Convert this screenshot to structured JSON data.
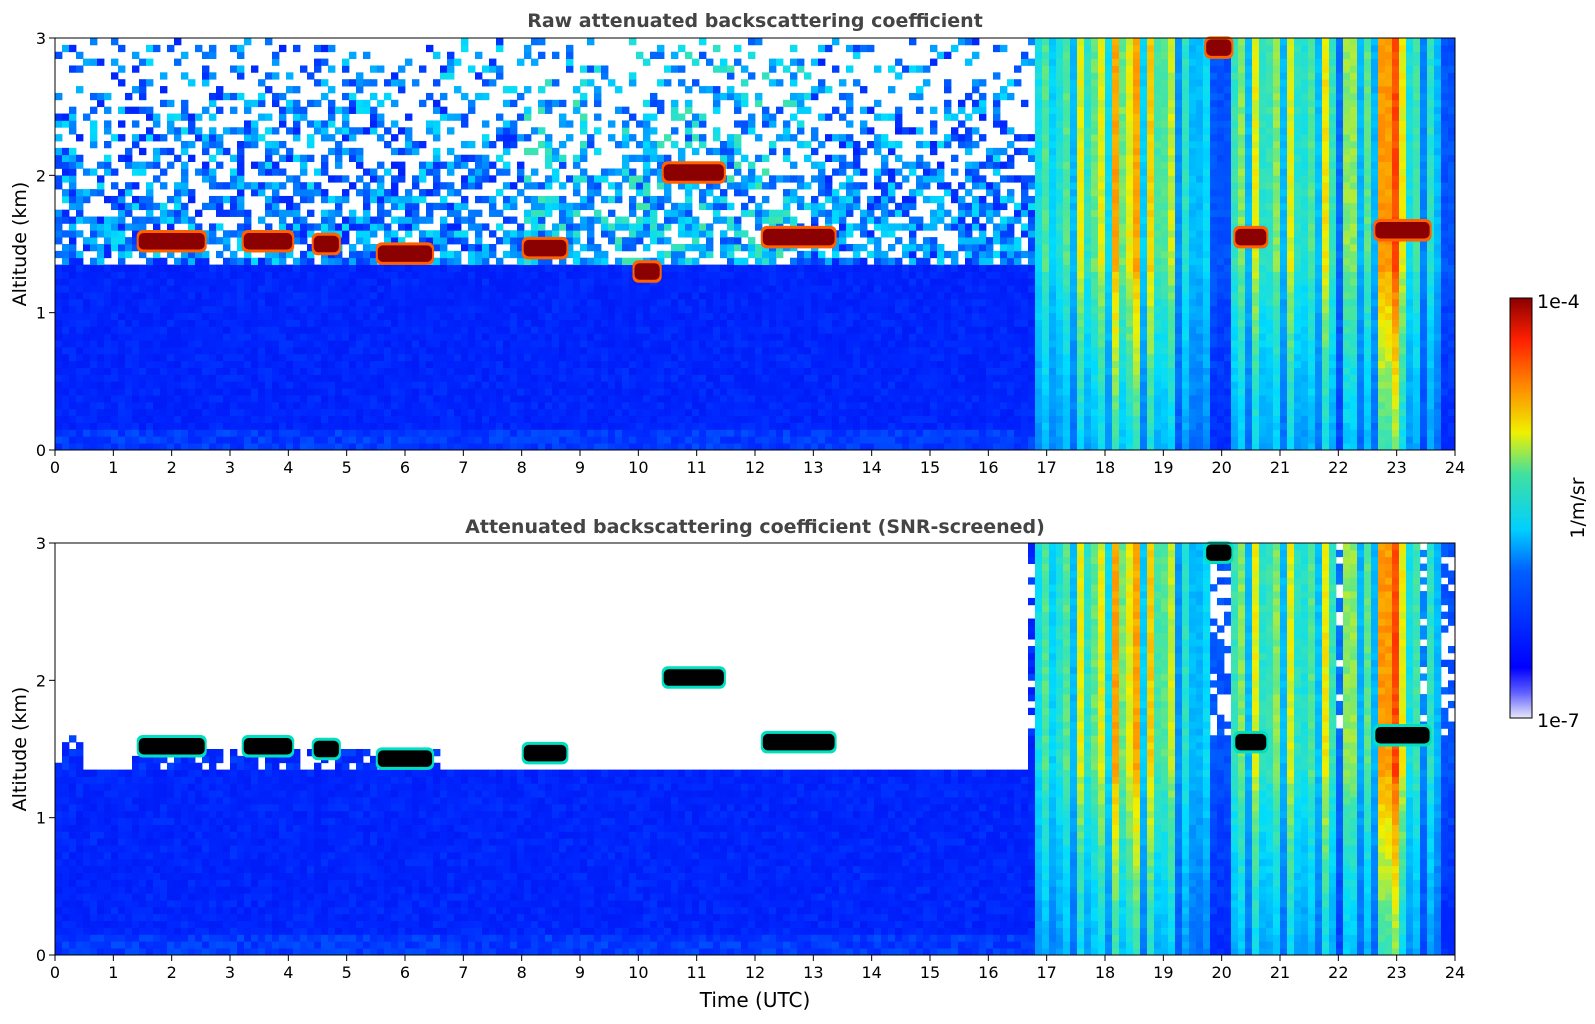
{
  "chart_data": [
    {
      "type": "heatmap",
      "title": "Raw attenuated backscattering coefficient",
      "ylabel": "Altitude (km)",
      "xlabel": "",
      "xlim": [
        0,
        24
      ],
      "ylim": [
        0,
        3
      ],
      "x_ticks": [
        "0",
        "1",
        "2",
        "3",
        "4",
        "5",
        "6",
        "7",
        "8",
        "9",
        "10",
        "11",
        "12",
        "13",
        "14",
        "15",
        "16",
        "17",
        "18",
        "19",
        "20",
        "21",
        "22",
        "23",
        "24"
      ],
      "y_ticks": [
        "0",
        "1",
        "2",
        "3"
      ],
      "screened": false,
      "cloud_layers": [
        {
          "t0": 1.4,
          "t1": 2.6,
          "alt": 1.52
        },
        {
          "t0": 3.2,
          "t1": 4.1,
          "alt": 1.52
        },
        {
          "t0": 4.4,
          "t1": 4.9,
          "alt": 1.5
        },
        {
          "t0": 5.5,
          "t1": 6.5,
          "alt": 1.43
        },
        {
          "t0": 8.0,
          "t1": 8.8,
          "alt": 1.47
        },
        {
          "t0": 9.9,
          "t1": 10.4,
          "alt": 1.3
        },
        {
          "t0": 10.4,
          "t1": 11.5,
          "alt": 2.02
        },
        {
          "t0": 12.1,
          "t1": 13.4,
          "alt": 1.55
        },
        {
          "t0": 19.7,
          "t1": 20.2,
          "alt": 2.93
        },
        {
          "t0": 20.2,
          "t1": 20.8,
          "alt": 1.55
        },
        {
          "t0": 22.6,
          "t1": 23.6,
          "alt": 1.6
        }
      ]
    },
    {
      "type": "heatmap",
      "title": "Attenuated backscattering coefficient (SNR-screened)",
      "ylabel": "Altitude (km)",
      "xlabel": "Time (UTC)",
      "xlim": [
        0,
        24
      ],
      "ylim": [
        0,
        3
      ],
      "x_ticks": [
        "0",
        "1",
        "2",
        "3",
        "4",
        "5",
        "6",
        "7",
        "8",
        "9",
        "10",
        "11",
        "12",
        "13",
        "14",
        "15",
        "16",
        "17",
        "18",
        "19",
        "20",
        "21",
        "22",
        "23",
        "24"
      ],
      "y_ticks": [
        "0",
        "1",
        "2",
        "3"
      ],
      "screened": true,
      "cloud_layers": [
        {
          "t0": 1.4,
          "t1": 2.6,
          "alt": 1.52
        },
        {
          "t0": 3.2,
          "t1": 4.1,
          "alt": 1.52
        },
        {
          "t0": 4.4,
          "t1": 4.9,
          "alt": 1.5
        },
        {
          "t0": 5.5,
          "t1": 6.5,
          "alt": 1.43
        },
        {
          "t0": 8.0,
          "t1": 8.8,
          "alt": 1.47
        },
        {
          "t0": 10.4,
          "t1": 11.5,
          "alt": 2.02
        },
        {
          "t0": 12.1,
          "t1": 13.4,
          "alt": 1.55
        },
        {
          "t0": 19.7,
          "t1": 20.2,
          "alt": 2.93
        },
        {
          "t0": 20.2,
          "t1": 20.8,
          "alt": 1.55
        },
        {
          "t0": 22.6,
          "t1": 23.6,
          "alt": 1.6
        }
      ]
    }
  ],
  "colorbar": {
    "label": "1/m/sr",
    "max_label": "1e-4",
    "min_label": "1e-7",
    "colors": [
      "#e8e8f8",
      "#0000ff",
      "#00c8ff",
      "#f0f000",
      "#ff4000",
      "#8b0000"
    ]
  }
}
